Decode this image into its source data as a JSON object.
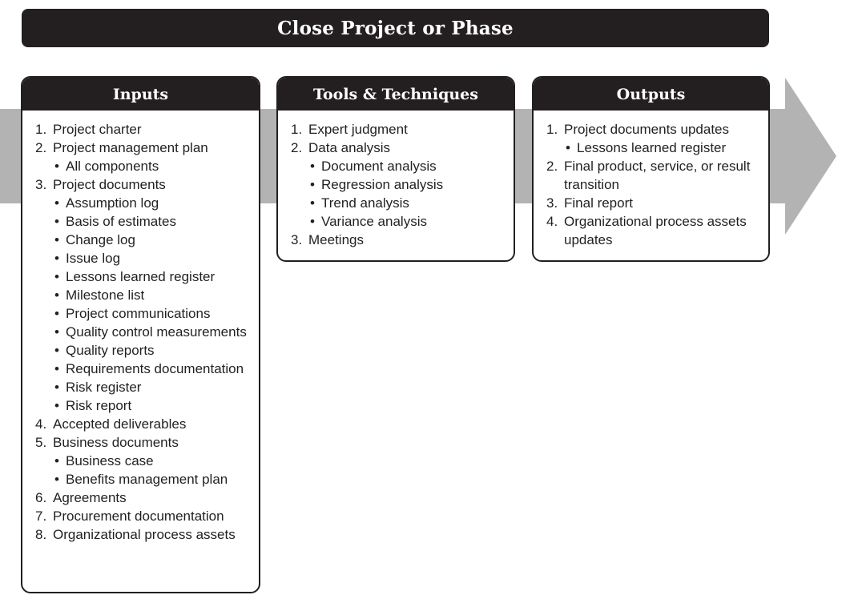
{
  "title": "Close Project or Phase",
  "colors": {
    "dark": "#231f20",
    "arrow": "#b3b3b3",
    "background": "#ffffff"
  },
  "panels": [
    {
      "title": "Inputs",
      "items": [
        {
          "num": "1.",
          "text": "Project charter",
          "sub": []
        },
        {
          "num": "2.",
          "text": "Project management plan",
          "sub": [
            "All components"
          ]
        },
        {
          "num": "3.",
          "text": "Project documents",
          "sub": [
            "Assumption log",
            "Basis of estimates",
            "Change log",
            "Issue log",
            "Lessons learned register",
            "Milestone list",
            "Project communications",
            "Quality control measurements",
            "Quality reports",
            "Requirements documentation",
            "Risk register",
            "Risk report"
          ]
        },
        {
          "num": "4.",
          "text": "Accepted deliverables",
          "sub": []
        },
        {
          "num": "5.",
          "text": "Business documents",
          "sub": [
            "Business case",
            "Benefits management plan"
          ]
        },
        {
          "num": "6.",
          "text": "Agreements",
          "sub": []
        },
        {
          "num": "7.",
          "text": "Procurement documentation",
          "sub": []
        },
        {
          "num": "8.",
          "text": "Organizational process assets",
          "sub": []
        }
      ]
    },
    {
      "title": "Tools & Techniques",
      "items": [
        {
          "num": "1.",
          "text": "Expert judgment",
          "sub": []
        },
        {
          "num": "2.",
          "text": "Data analysis",
          "sub": [
            "Document analysis",
            "Regression analysis",
            "Trend analysis",
            "Variance analysis"
          ]
        },
        {
          "num": "3.",
          "text": "Meetings",
          "sub": []
        }
      ]
    },
    {
      "title": "Outputs",
      "items": [
        {
          "num": "1.",
          "text": "Project documents updates",
          "sub": [
            "Lessons learned register"
          ]
        },
        {
          "num": "2.",
          "text": "Final product, service, or result transition",
          "sub": []
        },
        {
          "num": "3.",
          "text": "Final report",
          "sub": []
        },
        {
          "num": "4.",
          "text": "Organizational process assets updates",
          "sub": []
        }
      ]
    }
  ]
}
